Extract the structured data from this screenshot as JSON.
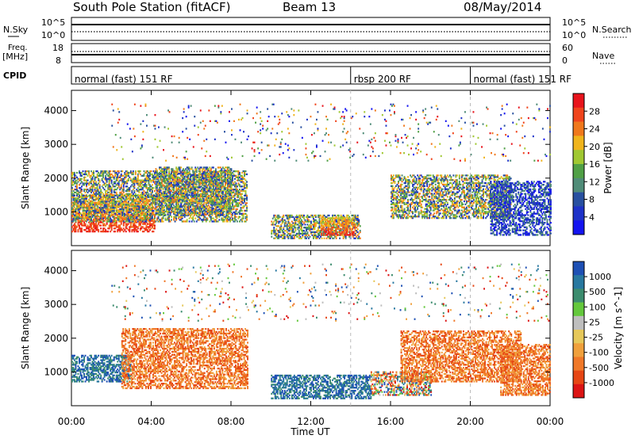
{
  "header": {
    "station": "South Pole Station (fitACF)",
    "beam": "Beam 13",
    "date": "08/May/2014"
  },
  "strip_labels": {
    "nsky": "N.Sky",
    "nsky_hi": "10^5",
    "nsky_lo": "10^0",
    "nsearch": "N.Search",
    "nsearch_hi": "10^5",
    "nsearch_lo": "10^0",
    "freq": "Freq.",
    "freq_unit": "[MHz]",
    "freq_hi": "18",
    "freq_lo": "8",
    "nave": "Nave",
    "nave_hi": "60",
    "nave_lo": "0",
    "cpid": "CPID"
  },
  "cpid_segments": [
    {
      "label": "normal (fast) 151 RF",
      "start_hr": 0,
      "end_hr": 14
    },
    {
      "label": "rbsp 200 RF",
      "start_hr": 14,
      "end_hr": 20
    },
    {
      "label": "normal (fast) 151 RF",
      "start_hr": 20,
      "end_hr": 24
    }
  ],
  "axes": {
    "ylabel": "Slant Range [km]",
    "xlabel": "Time UT",
    "xticks": [
      "00:00",
      "04:00",
      "08:00",
      "12:00",
      "16:00",
      "20:00",
      "00:00"
    ],
    "yticks": [
      "1000",
      "2000",
      "3000",
      "4000"
    ]
  },
  "power_scale": {
    "label": "Power [dB]",
    "ticks": [
      "28",
      "24",
      "20",
      "16",
      "12",
      "8",
      "4"
    ],
    "colors": [
      "#e8141c",
      "#f0441c",
      "#f0781c",
      "#f0b41c",
      "#a0c832",
      "#50a046",
      "#508c78",
      "#2850a0",
      "#1e32c8",
      "#1414f0"
    ]
  },
  "velocity_scale": {
    "label": "Velocity [m s^-1]",
    "ticks": [
      "1000",
      "500",
      "100",
      "25",
      "-25",
      "-100",
      "-500",
      "-1000"
    ],
    "colors": [
      "#1e50b4",
      "#2878a0",
      "#3c8c6e",
      "#64c83c",
      "#bebebe",
      "#e6c85a",
      "#f0a03c",
      "#f07828",
      "#e64614",
      "#dc1414"
    ]
  },
  "chart_data": {
    "type": "heatmap",
    "x_range_hours": [
      0,
      24
    ],
    "y_range_km": [
      0,
      4600
    ],
    "panels": [
      {
        "name": "Power",
        "regions": [
          {
            "t0": 0.0,
            "t1": 4.2,
            "r0": 400,
            "r1": 1500,
            "level": "high"
          },
          {
            "t0": 0.0,
            "t1": 8.8,
            "r0": 700,
            "r1": 2200,
            "level": "medium"
          },
          {
            "t0": 4.2,
            "t1": 8.0,
            "r0": 900,
            "r1": 2300,
            "level": "medium"
          },
          {
            "t0": 10.0,
            "t1": 14.5,
            "r0": 200,
            "r1": 900,
            "level": "medium"
          },
          {
            "t0": 12.5,
            "t1": 14.2,
            "r0": 300,
            "r1": 800,
            "level": "high"
          },
          {
            "t0": 16.0,
            "t1": 22.0,
            "r0": 800,
            "r1": 2100,
            "level": "medium"
          },
          {
            "t0": 21.0,
            "t1": 24.0,
            "r0": 300,
            "r1": 1900,
            "level": "low"
          },
          {
            "t0": 2.0,
            "t1": 24.0,
            "r0": 2500,
            "r1": 4200,
            "level": "sparse"
          }
        ]
      },
      {
        "name": "Velocity",
        "regions": [
          {
            "t0": 0.0,
            "t1": 3.0,
            "r0": 700,
            "r1": 1500,
            "level": "positive"
          },
          {
            "t0": 2.5,
            "t1": 8.8,
            "r0": 500,
            "r1": 2300,
            "level": "negative"
          },
          {
            "t0": 10.0,
            "t1": 15.0,
            "r0": 200,
            "r1": 900,
            "level": "positive"
          },
          {
            "t0": 15.0,
            "t1": 18.0,
            "r0": 300,
            "r1": 1000,
            "level": "mixed"
          },
          {
            "t0": 16.5,
            "t1": 22.5,
            "r0": 700,
            "r1": 2200,
            "level": "negative"
          },
          {
            "t0": 21.5,
            "t1": 24.0,
            "r0": 300,
            "r1": 1800,
            "level": "negative"
          },
          {
            "t0": 2.0,
            "t1": 24.0,
            "r0": 2500,
            "r1": 4200,
            "level": "sparse"
          }
        ]
      }
    ]
  }
}
